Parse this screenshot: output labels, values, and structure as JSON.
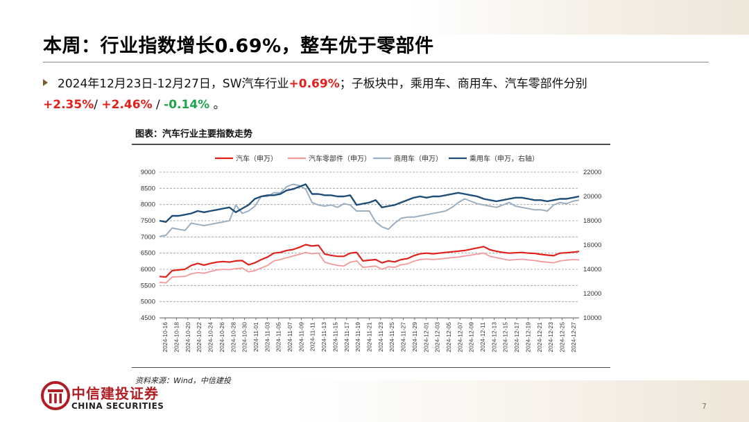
{
  "title": "本周：行业指数增长0.69%，整车优于零部件",
  "summary": {
    "text_before": "2024年12月23日-12月27日，SW汽车行业",
    "industry_change": "+0.69%",
    "text_middle": "；子板块中，乘用车、商用车、汽车零部件分别",
    "passenger_change": "+2.35%",
    "sep1": "/ ",
    "commercial_change": "+2.46%",
    "sep2": " / ",
    "parts_change": "-0.14%",
    "text_end": " 。",
    "colors": {
      "up": "#e0201c",
      "down": "#1ea34a"
    }
  },
  "chart_caption": "图表：汽车行业主要指数走势",
  "source_note": "资料来源：Wind，中信建投",
  "logo": {
    "name_cn": "中信建投证券",
    "name_en": "CHINA SECURITIES"
  },
  "page_number": "7",
  "chart_data": {
    "type": "line",
    "left_axis": {
      "min": 4500,
      "max": 9000,
      "ticks": [
        "4500",
        "5000",
        "5500",
        "6000",
        "6500",
        "7000",
        "7500",
        "8000",
        "8500",
        "9000"
      ]
    },
    "right_axis": {
      "min": 10000,
      "max": 22000,
      "ticks": [
        "10000",
        "12000",
        "14000",
        "16000",
        "18000",
        "20000",
        "22000"
      ]
    },
    "x_labels": [
      "2024-10-16",
      "2024-10-18",
      "2024-10-20",
      "2024-10-22",
      "2024-10-24",
      "2024-10-26",
      "2024-10-28",
      "2024-10-30",
      "2024-11-01",
      "2024-11-03",
      "2024-11-05",
      "2024-11-07",
      "2024-11-09",
      "2024-11-11",
      "2024-11-13",
      "2024-11-15",
      "2024-11-17",
      "2024-11-19",
      "2024-11-21",
      "2024-11-23",
      "2024-11-25",
      "2024-11-27",
      "2024-11-29",
      "2024-12-01",
      "2024-12-03",
      "2024-12-05",
      "2024-12-07",
      "2024-12-09",
      "2024-12-11",
      "2024-12-13",
      "2024-12-15",
      "2024-12-17",
      "2024-12-19",
      "2024-12-21",
      "2024-12-23",
      "2024-12-25",
      "2024-12-27"
    ],
    "grid_lines": "horizontal-dashed",
    "legend_position": "top",
    "series": [
      {
        "name": "汽车（申万）",
        "axis": "left",
        "color": "#e0201c",
        "width": 2.2,
        "values": [
          5780,
          5760,
          5960,
          5980,
          6000,
          6120,
          6180,
          6130,
          6180,
          6220,
          6240,
          6220,
          6260,
          6270,
          6140,
          6200,
          6300,
          6380,
          6500,
          6520,
          6580,
          6610,
          6680,
          6760,
          6720,
          6740,
          6470,
          6430,
          6400,
          6400,
          6500,
          6520,
          6260,
          6280,
          6300,
          6200,
          6260,
          6230,
          6300,
          6330,
          6420,
          6480,
          6500,
          6480,
          6500,
          6520,
          6540,
          6560,
          6580,
          6620,
          6660,
          6700,
          6600,
          6560,
          6520,
          6500,
          6510,
          6520,
          6500,
          6490,
          6460,
          6440,
          6420,
          6500,
          6510,
          6530,
          6550
        ]
      },
      {
        "name": "汽车零部件（申万）",
        "axis": "left",
        "color": "#f1999b",
        "width": 1.8,
        "values": [
          5600,
          5580,
          5760,
          5770,
          5780,
          5860,
          5900,
          5880,
          5930,
          5980,
          6000,
          5990,
          6020,
          6040,
          5920,
          5960,
          6040,
          6120,
          6260,
          6300,
          6360,
          6410,
          6460,
          6520,
          6480,
          6500,
          6220,
          6160,
          6120,
          6100,
          6220,
          6260,
          6060,
          6080,
          6100,
          6000,
          6080,
          6060,
          6140,
          6170,
          6250,
          6300,
          6320,
          6300,
          6320,
          6340,
          6360,
          6380,
          6410,
          6440,
          6470,
          6500,
          6400,
          6360,
          6320,
          6280,
          6300,
          6310,
          6290,
          6270,
          6240,
          6220,
          6200,
          6260,
          6280,
          6300,
          6290
        ]
      },
      {
        "name": "商用车（申万）",
        "axis": "right",
        "color": "#9aaec0",
        "width": 2,
        "values": [
          16700,
          16800,
          17400,
          17300,
          17200,
          17800,
          17700,
          17600,
          17700,
          17800,
          17900,
          18000,
          19300,
          18600,
          18800,
          19200,
          20000,
          20000,
          20300,
          20300,
          20800,
          21000,
          20900,
          20600,
          19500,
          19300,
          19200,
          19300,
          19100,
          19400,
          19300,
          18800,
          18800,
          18800,
          17900,
          17500,
          17300,
          17800,
          18200,
          18300,
          18300,
          18400,
          18500,
          18600,
          18700,
          18800,
          19100,
          19500,
          19800,
          19600,
          19400,
          19300,
          19200,
          19100,
          19300,
          19500,
          19200,
          19100,
          19000,
          18900,
          18900,
          18800,
          19300,
          19500,
          19400,
          19600,
          19700
        ]
      },
      {
        "name": "乘用车（申万，右轴）",
        "axis": "right",
        "color": "#1e4d78",
        "width": 2.4,
        "values": [
          18000,
          17900,
          18400,
          18400,
          18500,
          18600,
          18800,
          18700,
          18800,
          18900,
          19000,
          19100,
          18700,
          19000,
          19300,
          19800,
          20000,
          20100,
          20100,
          20200,
          20500,
          20600,
          20800,
          21000,
          20200,
          20200,
          20100,
          20100,
          20000,
          20000,
          20100,
          19300,
          19400,
          19500,
          19700,
          19100,
          19200,
          19300,
          19500,
          19700,
          19900,
          20000,
          19900,
          20000,
          20000,
          20100,
          20200,
          20300,
          20200,
          20100,
          20000,
          19800,
          19700,
          19600,
          19700,
          19800,
          19900,
          19900,
          19800,
          19700,
          19700,
          19600,
          19700,
          19800,
          19800,
          19900,
          20000
        ]
      }
    ]
  }
}
